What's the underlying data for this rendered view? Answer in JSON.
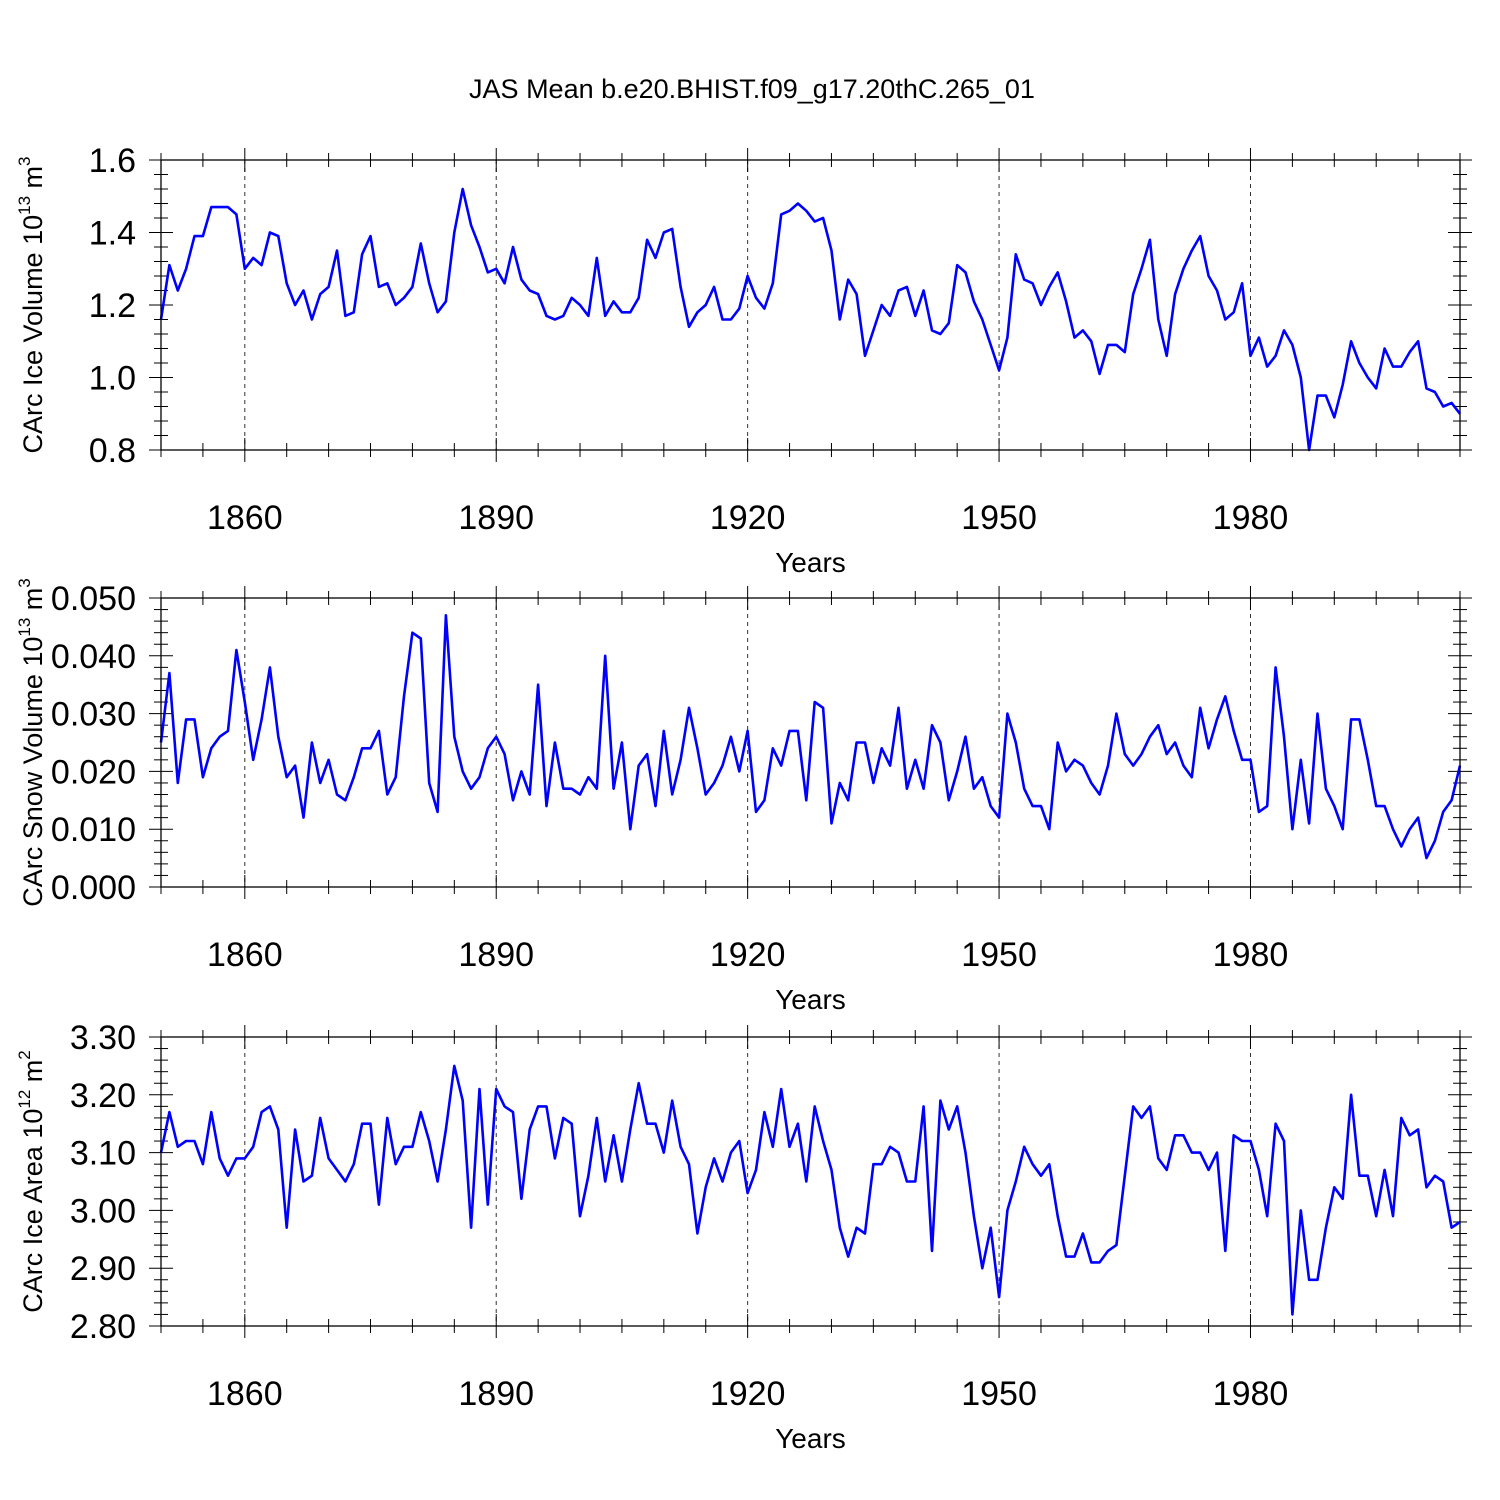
{
  "title": "JAS Mean b.e20.BHIST.f09_g17.20thC.265_01",
  "colors": {
    "line": "#0000ff",
    "axis": "#000000",
    "grid": "#000000"
  },
  "chart_data": [
    {
      "type": "line",
      "ylabel_base": "CArc Ice Volume 10",
      "ylabel_exp": "13",
      "ylabel_unit": " m",
      "ylabel_unit_exp": "3",
      "xlabel": "Years",
      "xlim": [
        1850,
        2005
      ],
      "ylim": [
        0.8,
        1.6
      ],
      "yticks": [
        0.8,
        1.0,
        1.2,
        1.4,
        1.6
      ],
      "ytick_labels": [
        "0.8",
        "1.0",
        "1.2",
        "1.4",
        "1.6"
      ],
      "xticks": [
        1860,
        1890,
        1920,
        1950,
        1980
      ],
      "xtick_labels": [
        "1860",
        "1890",
        "1920",
        "1950",
        "1980"
      ],
      "x_start": 1850,
      "values": [
        1.16,
        1.31,
        1.24,
        1.3,
        1.39,
        1.39,
        1.47,
        1.47,
        1.47,
        1.45,
        1.3,
        1.33,
        1.31,
        1.4,
        1.39,
        1.26,
        1.2,
        1.24,
        1.16,
        1.23,
        1.25,
        1.35,
        1.17,
        1.18,
        1.34,
        1.39,
        1.25,
        1.26,
        1.2,
        1.22,
        1.25,
        1.37,
        1.26,
        1.18,
        1.21,
        1.4,
        1.52,
        1.42,
        1.36,
        1.29,
        1.3,
        1.26,
        1.36,
        1.27,
        1.24,
        1.23,
        1.17,
        1.16,
        1.17,
        1.22,
        1.2,
        1.17,
        1.33,
        1.17,
        1.21,
        1.18,
        1.18,
        1.22,
        1.38,
        1.33,
        1.4,
        1.41,
        1.25,
        1.14,
        1.18,
        1.2,
        1.25,
        1.16,
        1.16,
        1.19,
        1.28,
        1.22,
        1.19,
        1.26,
        1.45,
        1.46,
        1.48,
        1.46,
        1.43,
        1.44,
        1.35,
        1.16,
        1.27,
        1.23,
        1.06,
        1.13,
        1.2,
        1.17,
        1.24,
        1.25,
        1.17,
        1.24,
        1.13,
        1.12,
        1.15,
        1.31,
        1.29,
        1.21,
        1.16,
        1.09,
        1.02,
        1.11,
        1.34,
        1.27,
        1.26,
        1.2,
        1.25,
        1.29,
        1.21,
        1.11,
        1.13,
        1.1,
        1.01,
        1.09,
        1.09,
        1.07,
        1.23,
        1.3,
        1.38,
        1.16,
        1.06,
        1.23,
        1.3,
        1.35,
        1.39,
        1.28,
        1.24,
        1.16,
        1.18,
        1.26,
        1.06,
        1.11,
        1.03,
        1.06,
        1.13,
        1.09,
        1.0,
        0.8,
        0.95,
        0.95,
        0.89,
        0.98,
        1.1,
        1.04,
        1.0,
        0.97,
        1.08,
        1.03,
        1.03,
        1.07,
        1.1,
        0.97,
        0.96,
        0.92,
        0.93,
        0.9
      ]
    },
    {
      "type": "line",
      "ylabel_base": "CArc Snow Volume 10",
      "ylabel_exp": "13",
      "ylabel_unit": " m",
      "ylabel_unit_exp": "3",
      "xlabel": "Years",
      "xlim": [
        1850,
        2005
      ],
      "ylim": [
        0.0,
        0.05
      ],
      "yticks": [
        0.0,
        0.01,
        0.02,
        0.03,
        0.04,
        0.05
      ],
      "ytick_labels": [
        "0.000",
        "0.010",
        "0.020",
        "0.030",
        "0.040",
        "0.050"
      ],
      "xticks": [
        1860,
        1890,
        1920,
        1950,
        1980
      ],
      "xtick_labels": [
        "1860",
        "1890",
        "1920",
        "1950",
        "1980"
      ],
      "x_start": 1850,
      "values": [
        0.025,
        0.037,
        0.018,
        0.029,
        0.029,
        0.019,
        0.024,
        0.026,
        0.027,
        0.041,
        0.032,
        0.022,
        0.029,
        0.038,
        0.026,
        0.019,
        0.021,
        0.012,
        0.025,
        0.018,
        0.022,
        0.016,
        0.015,
        0.019,
        0.024,
        0.024,
        0.027,
        0.016,
        0.019,
        0.033,
        0.044,
        0.043,
        0.018,
        0.013,
        0.047,
        0.026,
        0.02,
        0.017,
        0.019,
        0.024,
        0.026,
        0.023,
        0.015,
        0.02,
        0.016,
        0.035,
        0.014,
        0.025,
        0.017,
        0.017,
        0.016,
        0.019,
        0.017,
        0.04,
        0.017,
        0.025,
        0.01,
        0.021,
        0.023,
        0.014,
        0.027,
        0.016,
        0.022,
        0.031,
        0.024,
        0.016,
        0.018,
        0.021,
        0.026,
        0.02,
        0.027,
        0.013,
        0.015,
        0.024,
        0.021,
        0.027,
        0.027,
        0.015,
        0.032,
        0.031,
        0.011,
        0.018,
        0.015,
        0.025,
        0.025,
        0.018,
        0.024,
        0.021,
        0.031,
        0.017,
        0.022,
        0.017,
        0.028,
        0.025,
        0.015,
        0.02,
        0.026,
        0.017,
        0.019,
        0.014,
        0.012,
        0.03,
        0.025,
        0.017,
        0.014,
        0.014,
        0.01,
        0.025,
        0.02,
        0.022,
        0.021,
        0.018,
        0.016,
        0.021,
        0.03,
        0.023,
        0.021,
        0.023,
        0.026,
        0.028,
        0.023,
        0.025,
        0.021,
        0.019,
        0.031,
        0.024,
        0.029,
        0.033,
        0.027,
        0.022,
        0.022,
        0.013,
        0.014,
        0.038,
        0.026,
        0.01,
        0.022,
        0.011,
        0.03,
        0.017,
        0.014,
        0.01,
        0.029,
        0.029,
        0.022,
        0.014,
        0.014,
        0.01,
        0.007,
        0.01,
        0.012,
        0.005,
        0.008,
        0.013,
        0.015,
        0.021
      ]
    },
    {
      "type": "line",
      "ylabel_base": "CArc Ice Area 10",
      "ylabel_exp": "12",
      "ylabel_unit": " m",
      "ylabel_unit_exp": "2",
      "xlabel": "Years",
      "xlim": [
        1850,
        2005
      ],
      "ylim": [
        2.8,
        3.3
      ],
      "yticks": [
        2.8,
        2.9,
        3.0,
        3.1,
        3.2,
        3.3
      ],
      "ytick_labels": [
        "2.80",
        "2.90",
        "3.00",
        "3.10",
        "3.20",
        "3.30"
      ],
      "xticks": [
        1860,
        1890,
        1920,
        1950,
        1980
      ],
      "xtick_labels": [
        "1860",
        "1890",
        "1920",
        "1950",
        "1980"
      ],
      "x_start": 1850,
      "values": [
        3.1,
        3.17,
        3.11,
        3.12,
        3.12,
        3.08,
        3.17,
        3.09,
        3.06,
        3.09,
        3.09,
        3.11,
        3.17,
        3.18,
        3.14,
        2.97,
        3.14,
        3.05,
        3.06,
        3.16,
        3.09,
        3.07,
        3.05,
        3.08,
        3.15,
        3.15,
        3.01,
        3.16,
        3.08,
        3.11,
        3.11,
        3.17,
        3.12,
        3.05,
        3.14,
        3.25,
        3.19,
        2.97,
        3.21,
        3.01,
        3.21,
        3.18,
        3.17,
        3.02,
        3.14,
        3.18,
        3.18,
        3.09,
        3.16,
        3.15,
        2.99,
        3.06,
        3.16,
        3.05,
        3.13,
        3.05,
        3.14,
        3.22,
        3.15,
        3.15,
        3.1,
        3.19,
        3.11,
        3.08,
        2.96,
        3.04,
        3.09,
        3.05,
        3.1,
        3.12,
        3.03,
        3.07,
        3.17,
        3.11,
        3.21,
        3.11,
        3.15,
        3.05,
        3.18,
        3.12,
        3.07,
        2.97,
        2.92,
        2.97,
        2.96,
        3.08,
        3.08,
        3.11,
        3.1,
        3.05,
        3.05,
        3.18,
        2.93,
        3.19,
        3.14,
        3.18,
        3.1,
        2.99,
        2.9,
        2.97,
        2.85,
        3.0,
        3.05,
        3.11,
        3.08,
        3.06,
        3.08,
        2.99,
        2.92,
        2.92,
        2.96,
        2.91,
        2.91,
        2.93,
        2.94,
        3.06,
        3.18,
        3.16,
        3.18,
        3.09,
        3.07,
        3.13,
        3.13,
        3.1,
        3.1,
        3.07,
        3.1,
        2.93,
        3.13,
        3.12,
        3.12,
        3.07,
        2.99,
        3.15,
        3.12,
        2.82,
        3.0,
        2.88,
        2.88,
        2.97,
        3.04,
        3.02,
        3.2,
        3.06,
        3.06,
        2.99,
        3.07,
        2.99,
        3.16,
        3.13,
        3.14,
        3.04,
        3.06,
        3.05,
        2.97,
        2.98
      ]
    }
  ]
}
